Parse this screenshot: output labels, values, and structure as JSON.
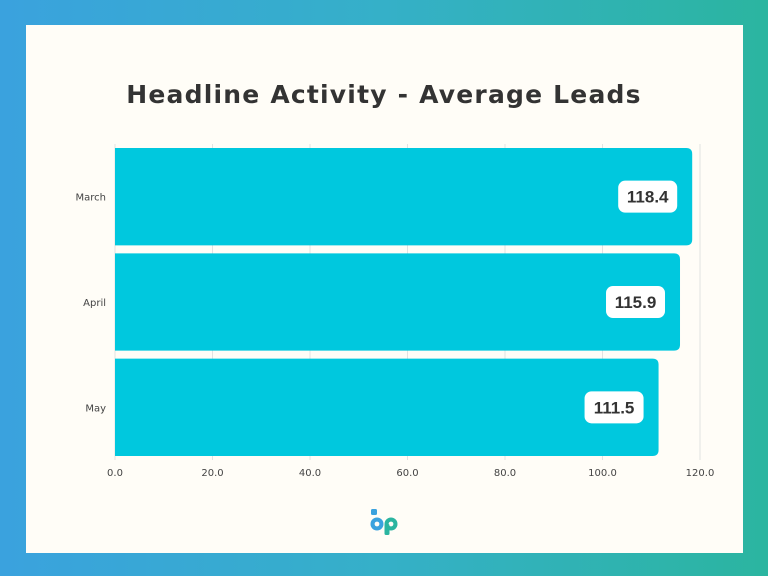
{
  "chart_data": {
    "type": "bar",
    "orientation": "horizontal",
    "title": "Headline Activity - Average Leads",
    "categories": [
      "March",
      "April",
      "May"
    ],
    "values": [
      118.4,
      115.9,
      111.5
    ],
    "value_labels": [
      "118.4",
      "115.9",
      "111.5"
    ],
    "xlim": [
      0,
      120
    ],
    "x_ticks": [
      "0.0",
      "20.0",
      "40.0",
      "60.0",
      "80.0",
      "100.0",
      "120.0"
    ],
    "xlabel": "",
    "ylabel": "",
    "grid": true,
    "bar_color": "#00c8de"
  },
  "colors": {
    "text": "#333333",
    "grid": "#e2e2e2",
    "logo_blue": "#3aa2de",
    "logo_teal": "#2bb5a0"
  },
  "logo": {
    "icon": "bp-logo-icon"
  }
}
